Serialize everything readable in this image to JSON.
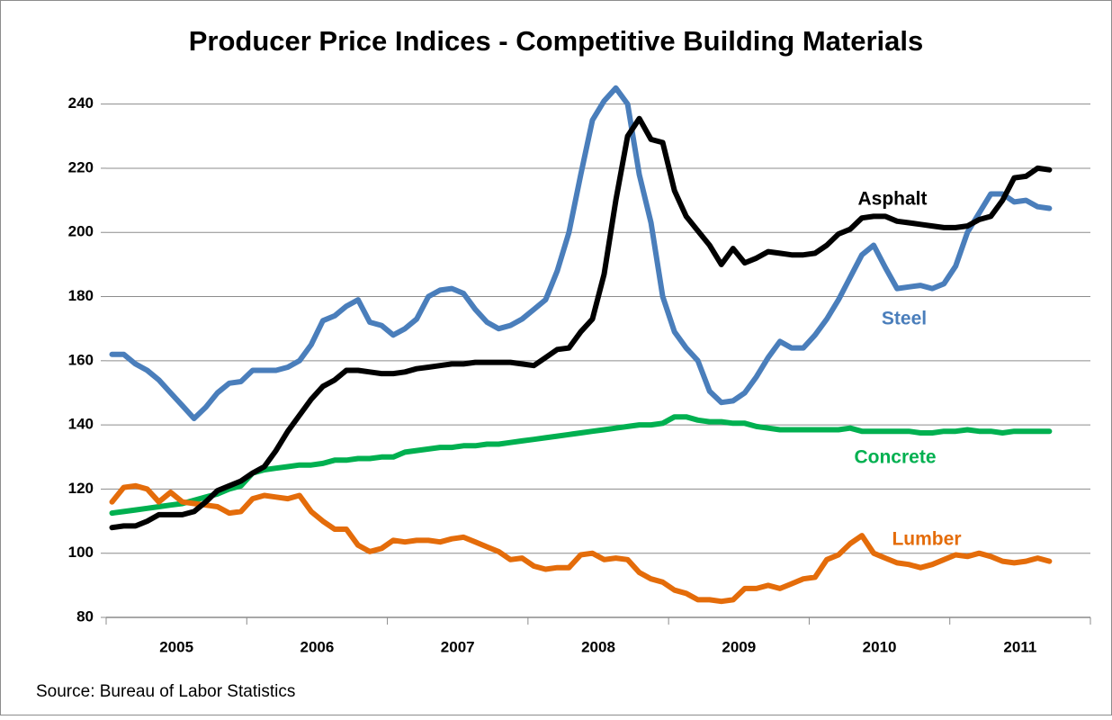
{
  "chart_data": {
    "type": "line",
    "title": "Producer Price Indices - Competitive Building Materials",
    "source": "Source: Bureau of Labor Statistics",
    "categories": [
      null,
      null,
      null,
      null,
      null,
      null,
      "2005",
      null,
      null,
      null,
      null,
      null,
      null,
      null,
      null,
      null,
      null,
      null,
      "2006",
      null,
      null,
      null,
      null,
      null,
      null,
      null,
      null,
      null,
      null,
      null,
      "2007",
      null,
      null,
      null,
      null,
      null,
      null,
      null,
      null,
      null,
      null,
      null,
      "2008",
      null,
      null,
      null,
      null,
      null,
      null,
      null,
      null,
      null,
      null,
      null,
      "2009",
      null,
      null,
      null,
      null,
      null,
      null,
      null,
      null,
      null,
      null,
      null,
      "2010",
      null,
      null,
      null,
      null,
      null,
      null,
      null,
      null,
      null,
      null,
      null,
      "2011",
      null,
      null
    ],
    "ylim": [
      80,
      250
    ],
    "yticks": [
      80,
      100,
      120,
      140,
      160,
      180,
      200,
      220,
      240
    ],
    "grid": true,
    "series": [
      {
        "name": "Steel",
        "color": "#4a7ebb",
        "values": [
          162,
          162,
          159,
          157,
          154,
          150,
          146,
          142,
          145.5,
          150,
          153,
          153.5,
          157,
          157,
          157,
          158,
          160,
          165,
          172.5,
          174,
          177,
          179,
          172,
          171,
          168,
          170,
          173,
          180,
          182,
          182.5,
          181,
          176,
          172,
          170,
          171,
          173,
          176,
          179,
          188,
          200,
          218,
          235,
          241,
          245,
          240,
          218,
          203,
          180,
          169,
          164,
          160,
          150.5,
          147,
          147.5,
          150,
          155,
          161,
          166,
          164,
          164,
          168,
          173,
          179,
          186,
          193,
          196,
          189,
          182.5,
          183,
          183.5,
          182.5,
          184,
          189.5,
          200,
          206,
          212,
          212,
          209.5,
          210,
          208,
          207.5
        ]
      },
      {
        "name": "Asphalt",
        "color": "#000000",
        "values": [
          108,
          108.5,
          108.5,
          110,
          112,
          112,
          112,
          113,
          116,
          119.5,
          121,
          122.5,
          125,
          127,
          132,
          138,
          143,
          148,
          152,
          154,
          157,
          157,
          156.5,
          156,
          156,
          156.5,
          157.5,
          158,
          158.5,
          159,
          159,
          159.5,
          159.5,
          159.5,
          159.5,
          159,
          158.5,
          161,
          163.5,
          164,
          169,
          173,
          187,
          210,
          230,
          235.5,
          229,
          228,
          213,
          205,
          200.5,
          196,
          190,
          195,
          190.5,
          192,
          194,
          193.5,
          193,
          193,
          193.5,
          196,
          199.5,
          201,
          204.5,
          205,
          205,
          203.5,
          203,
          202.5,
          202,
          201.5,
          201.5,
          202,
          204,
          205,
          210,
          217,
          217.5,
          220,
          219.5
        ]
      },
      {
        "name": "Concrete",
        "color": "#00b050",
        "values": [
          112.5,
          113,
          113.5,
          114,
          114.5,
          115,
          115.5,
          116.5,
          117.5,
          118.5,
          120,
          121,
          125,
          126,
          126.5,
          127,
          127.5,
          127.5,
          128,
          129,
          129,
          129.5,
          129.5,
          130,
          130,
          131.5,
          132,
          132.5,
          133,
          133,
          133.5,
          133.5,
          134,
          134,
          134.5,
          135,
          135.5,
          136,
          136.5,
          137,
          137.5,
          138,
          138.5,
          139,
          139.5,
          140,
          140,
          140.5,
          142.5,
          142.5,
          141.5,
          141,
          141,
          140.5,
          140.5,
          139.5,
          139,
          138.5,
          138.5,
          138.5,
          138.5,
          138.5,
          138.5,
          139,
          138,
          138,
          138,
          138,
          138,
          137.5,
          137.5,
          138,
          138,
          138.5,
          138,
          138,
          137.5,
          138,
          138,
          138,
          138
        ]
      },
      {
        "name": "Lumber",
        "color": "#e46c0a",
        "values": [
          116,
          120.5,
          121,
          120,
          116,
          119,
          116,
          115.5,
          115,
          114.5,
          112.5,
          113,
          117,
          118,
          117.5,
          117,
          118,
          113,
          110,
          107.5,
          107.5,
          102.5,
          100.5,
          101.5,
          104,
          103.5,
          104,
          104,
          103.5,
          104.5,
          105,
          103.5,
          102,
          100.5,
          98,
          98.5,
          96,
          95,
          95.5,
          95.5,
          99.5,
          100,
          98,
          98.5,
          98,
          94,
          92,
          91,
          88.5,
          87.5,
          85.5,
          85.5,
          85,
          85.5,
          89,
          89,
          90,
          89,
          90.5,
          92,
          92.5,
          98,
          99.5,
          103,
          105.5,
          100,
          98.5,
          97,
          96.5,
          95.5,
          96.5,
          98,
          99.5,
          99,
          100,
          99,
          97.5,
          97,
          97.5,
          98.5,
          97.5
        ]
      }
    ]
  }
}
